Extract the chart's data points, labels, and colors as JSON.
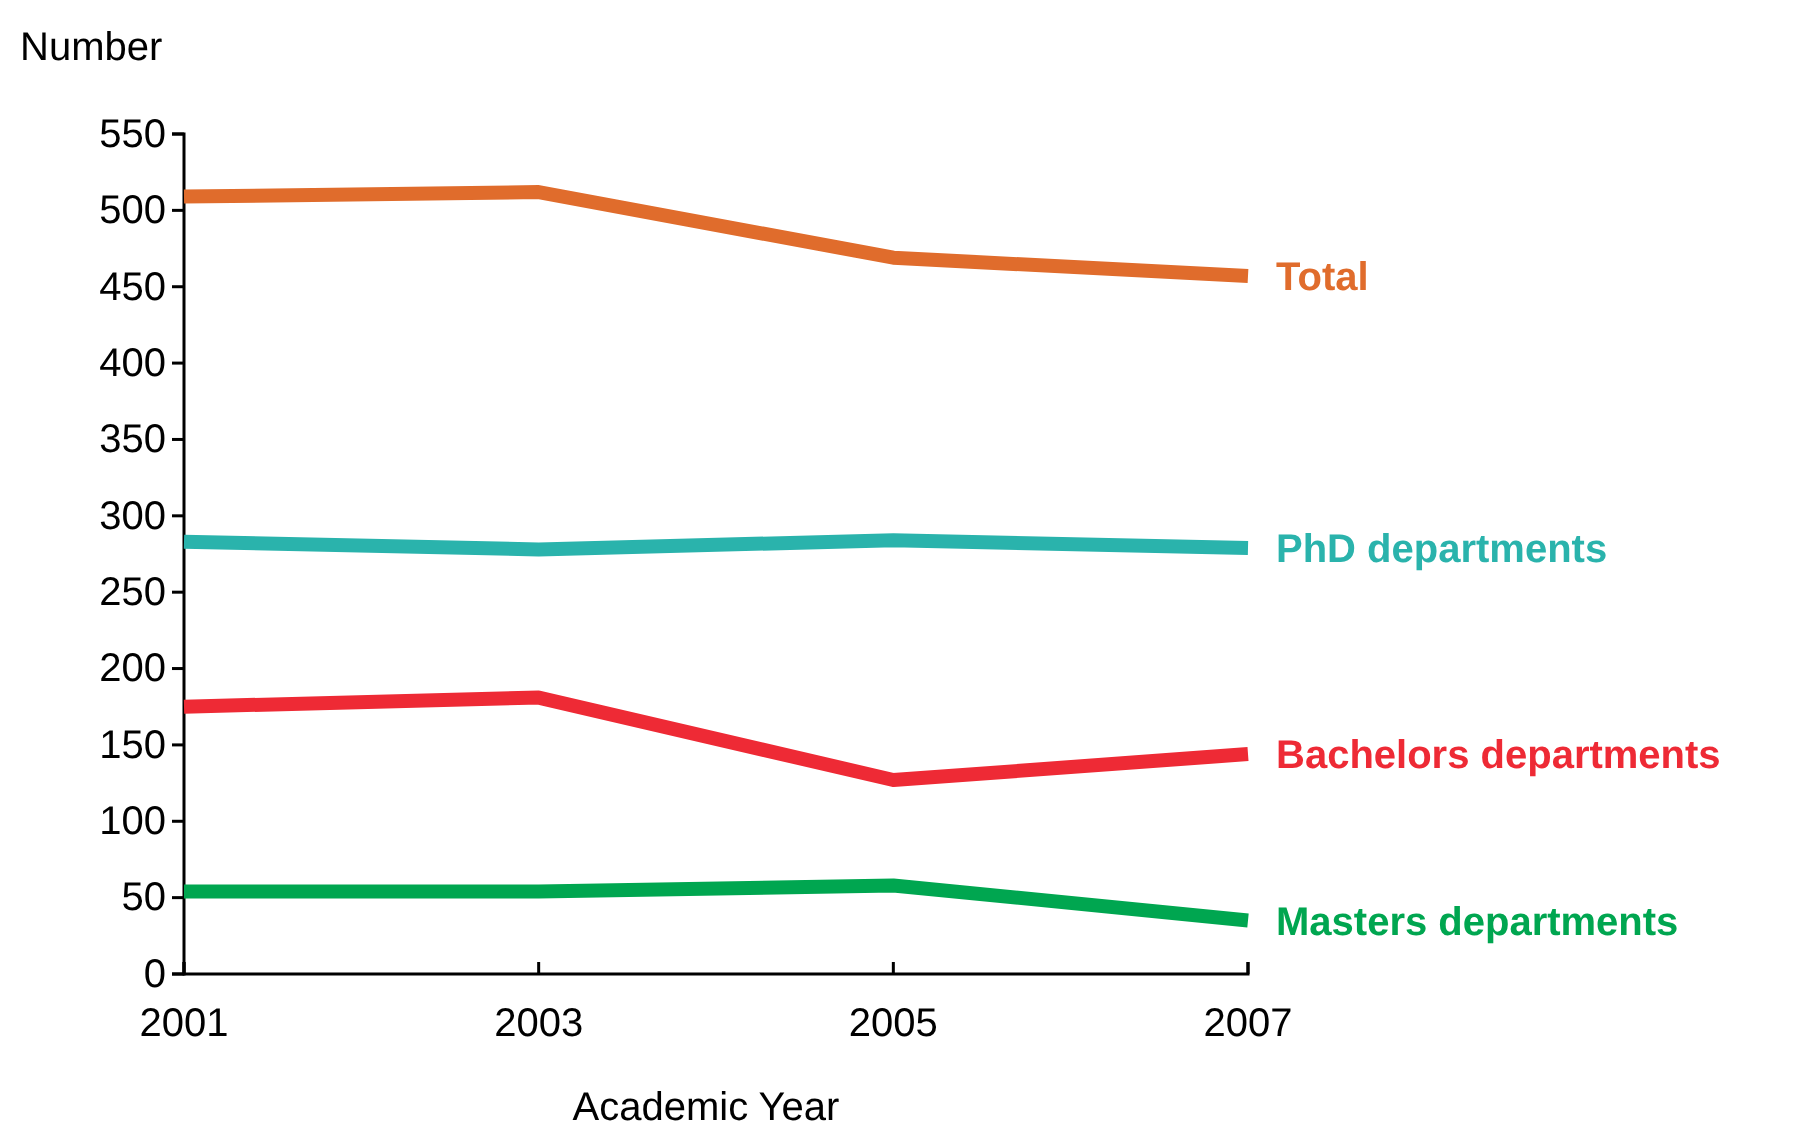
{
  "chart_data": {
    "type": "line",
    "xlabel": "Academic Year",
    "ylabel": "Number",
    "x": [
      2001,
      2003,
      2005,
      2007
    ],
    "xlim": [
      2001,
      2007
    ],
    "xticks": [
      2001,
      2003,
      2005,
      2007
    ],
    "ylim": [
      0,
      550
    ],
    "yticks": [
      0,
      50,
      100,
      150,
      200,
      250,
      300,
      350,
      400,
      450,
      500,
      550
    ],
    "grid": false,
    "marker": "none",
    "line_style": "solid",
    "series": [
      {
        "name": "Total",
        "color": "#e06c2c",
        "values": [
          509,
          512,
          469,
          457
        ]
      },
      {
        "name": "PhD departments",
        "color": "#2ab3ac",
        "values": [
          283,
          278,
          284,
          279
        ]
      },
      {
        "name": "Bachelors departments",
        "color": "#ee2a35",
        "values": [
          175,
          181,
          127,
          144
        ]
      },
      {
        "name": "Masters departments",
        "color": "#00a650",
        "values": [
          54,
          54,
          58,
          35
        ]
      }
    ]
  }
}
